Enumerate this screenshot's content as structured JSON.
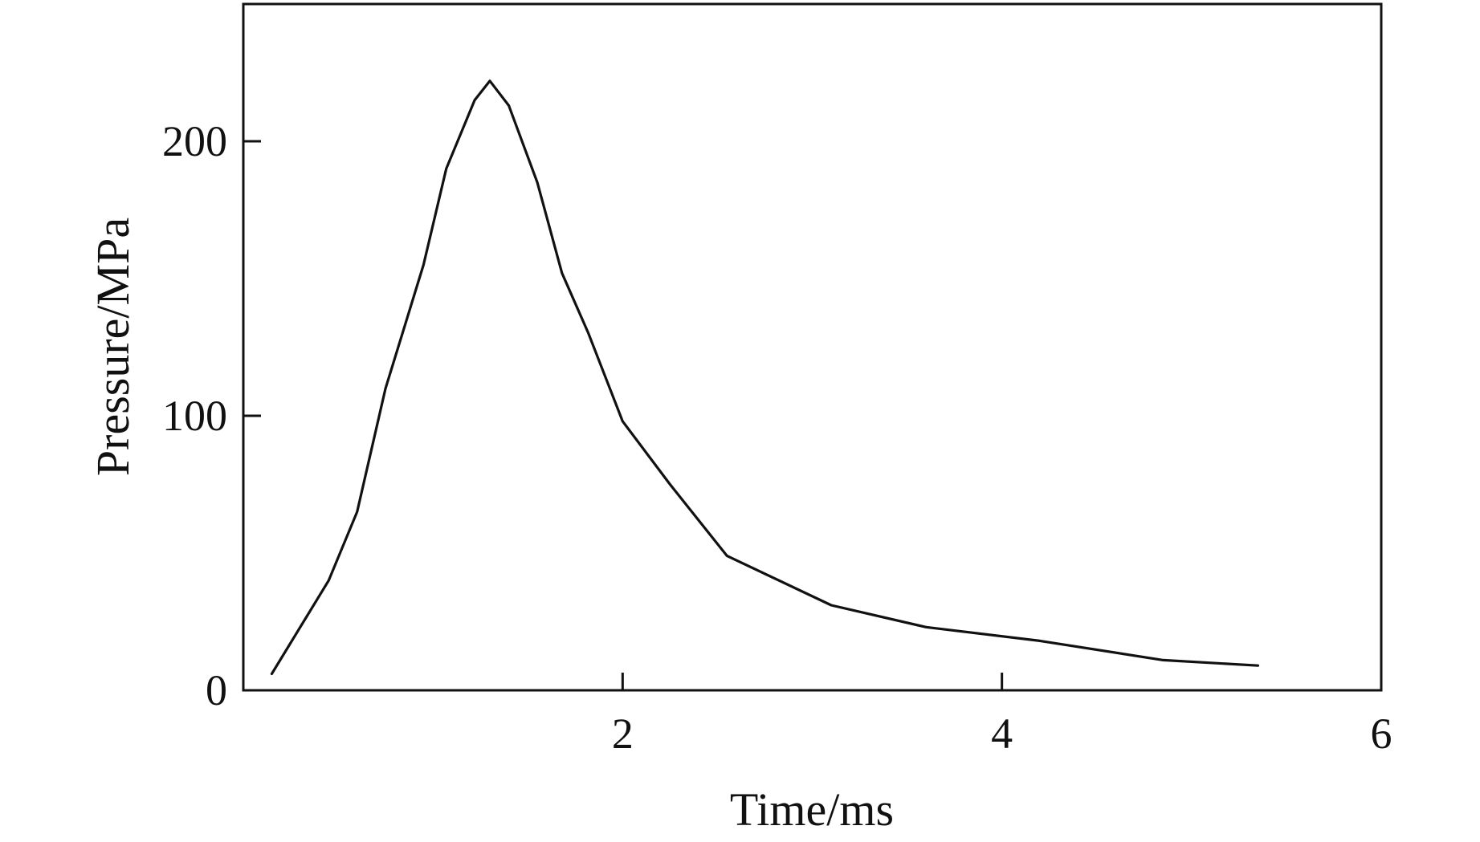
{
  "chart_data": {
    "type": "line",
    "title": "",
    "xlabel": "Time/ms",
    "ylabel": "Pressure/MPa",
    "xlim": [
      0,
      6
    ],
    "ylim": [
      0,
      250
    ],
    "xticks": [
      2,
      4,
      6
    ],
    "yticks": [
      0,
      100,
      200
    ],
    "grid": false,
    "legend": "none",
    "series": [
      {
        "color": "#111111",
        "points": [
          {
            "x": 0.15,
            "y": 6
          },
          {
            "x": 0.45,
            "y": 40
          },
          {
            "x": 0.6,
            "y": 65
          },
          {
            "x": 0.75,
            "y": 110
          },
          {
            "x": 0.95,
            "y": 155
          },
          {
            "x": 1.07,
            "y": 190
          },
          {
            "x": 1.22,
            "y": 215
          },
          {
            "x": 1.3,
            "y": 222
          },
          {
            "x": 1.4,
            "y": 213
          },
          {
            "x": 1.55,
            "y": 185
          },
          {
            "x": 1.68,
            "y": 152
          },
          {
            "x": 1.82,
            "y": 130
          },
          {
            "x": 2.0,
            "y": 98
          },
          {
            "x": 2.25,
            "y": 75
          },
          {
            "x": 2.55,
            "y": 49
          },
          {
            "x": 3.1,
            "y": 31
          },
          {
            "x": 3.6,
            "y": 23
          },
          {
            "x": 4.2,
            "y": 18
          },
          {
            "x": 4.85,
            "y": 11
          },
          {
            "x": 5.35,
            "y": 9
          }
        ]
      }
    ]
  }
}
